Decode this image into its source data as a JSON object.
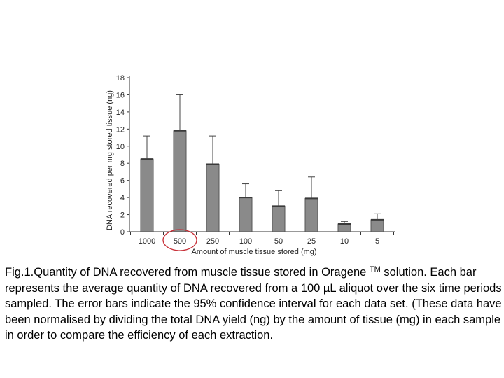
{
  "chart_data": {
    "type": "bar",
    "categories": [
      "1000",
      "500",
      "250",
      "100",
      "50",
      "25",
      "10",
      "5"
    ],
    "values": [
      8.5,
      11.8,
      7.9,
      4.0,
      3.0,
      3.9,
      0.9,
      1.4
    ],
    "error_upper": [
      11.2,
      16.0,
      11.2,
      5.6,
      4.8,
      6.4,
      1.2,
      2.1
    ],
    "xlabel": "Amount of muscle tissue stored (mg)",
    "ylabel": "DNA recovered per mg stored tissue (ng)",
    "ylim": [
      0,
      18
    ],
    "yticks": [
      0,
      2,
      4,
      6,
      8,
      10,
      12,
      14,
      16,
      18
    ],
    "grid": false,
    "highlighted_category": "500",
    "colors": {
      "bar_fill": "#8a8a8a",
      "bar_stroke": "#555555",
      "axis": "#333333",
      "highlight_circle": "#c8323a"
    }
  },
  "caption": {
    "text_before": "Fig.1.Quantity of DNA recovered from muscle tissue stored in Oragene ",
    "trademark": "TM",
    "text_after": " solution. Each bar represents the average quantity of DNA recovered from a 100 µL aliquot over the six time periods sampled. The error bars indicate the 95% confidence interval for each data set. (These data have been normalised by dividing the total DNA yield (ng) by the amount of tissue (mg) in each sample in order to compare the efficiency of each extraction."
  }
}
